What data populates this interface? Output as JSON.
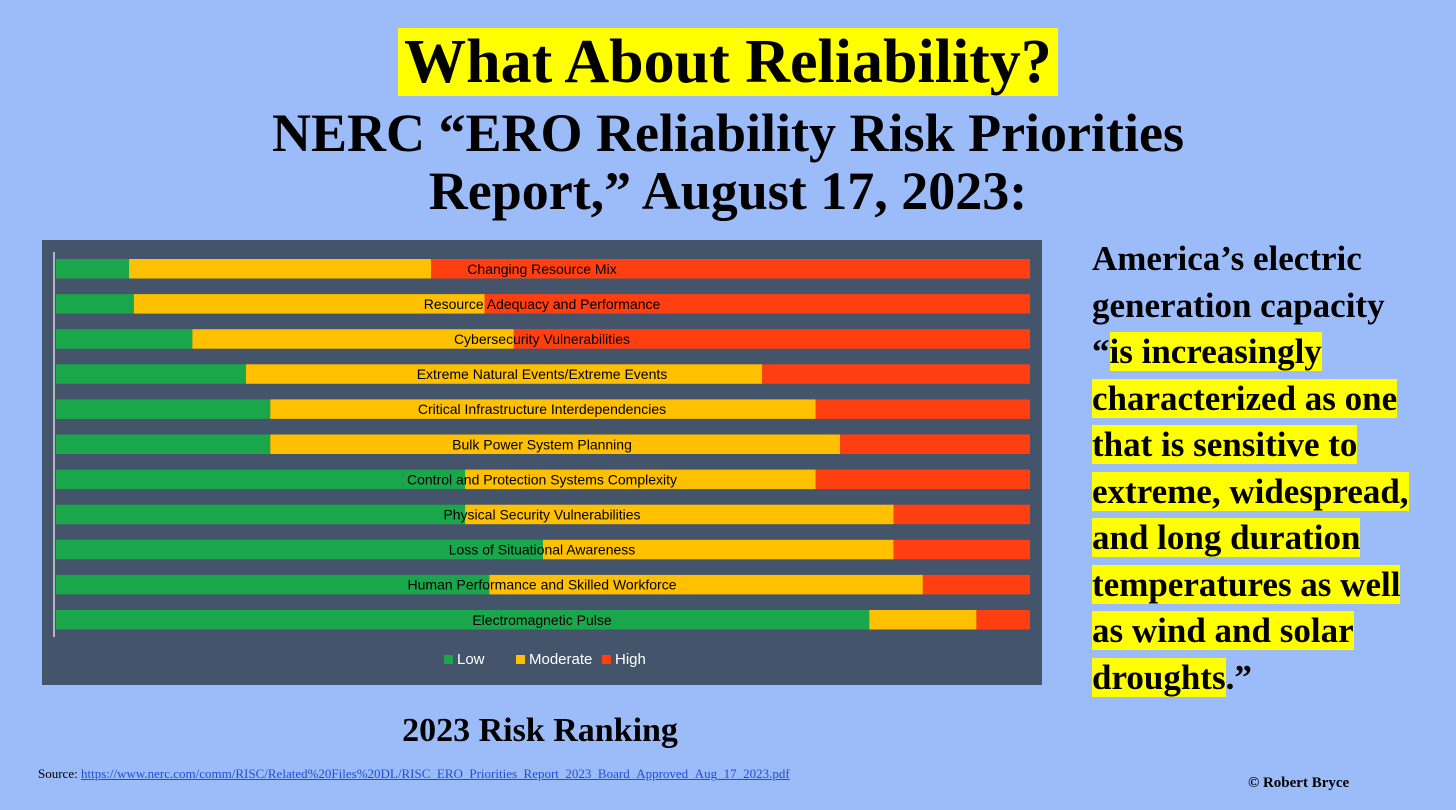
{
  "title": "What About Reliability?",
  "subtitle_line1": "NERC “ERO Reliability Risk Priorities",
  "subtitle_line2": "Report,” August 17, 2023:",
  "quote": {
    "lines": [
      {
        "text": "America’s electric",
        "highlight": false
      },
      {
        "text": "generation capacity",
        "highlight": false
      },
      {
        "prefix": "“",
        "text": "is increasingly ",
        "highlight": true
      },
      {
        "text": "characterized as one ",
        "highlight": true
      },
      {
        "text": "that is sensitive to ",
        "highlight": true
      },
      {
        "text": "extreme, widespread,",
        "highlight": true
      },
      {
        "text": "and long duration ",
        "highlight": true
      },
      {
        "text": "temperatures as well",
        "highlight": true
      },
      {
        "text": "as wind and solar ",
        "highlight": true
      },
      {
        "text": "droughts",
        "highlight": true,
        "suffix": ".”"
      }
    ]
  },
  "caption": "2023 Risk Ranking",
  "source_label": "Source: ",
  "source_link": "https://www.nerc.com/comm/RISC/Related%20Files%20DL/RISC_ERO_Priorities_Report_2023_Board_Approved_Aug_17_2023.pdf",
  "credit": "© Robert Bryce",
  "colors": {
    "low": "#1aa64a",
    "moderate": "#ffc000",
    "high": "#ff3f0f",
    "chart_bg": "#44546a",
    "highlight": "#ffff00"
  },
  "chart_data": {
    "type": "bar",
    "orientation": "horizontal",
    "stacked": "100%",
    "categories": [
      "Changing Resource Mix",
      "Resource Adequacy and Performance",
      "Cybersecurity Vulnerabilities",
      "Extreme Natural Events/Extreme Events",
      "Critical Infrastructure Interdependencies",
      "Bulk Power System Planning",
      "Control and Protection Systems Complexity",
      "Physical Security Vulnerabilities",
      "Loss of Situational Awareness",
      "Human Performance and Skilled Workforce",
      "Electromagnetic Pulse"
    ],
    "series": [
      {
        "name": "Low",
        "values": [
          7.5,
          8,
          14,
          19.5,
          22,
          22,
          42,
          42,
          50,
          44.5,
          83.5
        ]
      },
      {
        "name": "Moderate",
        "values": [
          31,
          36,
          33,
          53,
          56,
          58.5,
          36,
          44,
          36,
          44.5,
          11
        ]
      },
      {
        "name": "High",
        "values": [
          61.5,
          56,
          53,
          27.5,
          22,
          19.5,
          22,
          14,
          14,
          11,
          5.5
        ]
      }
    ],
    "legend": [
      "Low",
      "Moderate",
      "High"
    ],
    "legend_position": "bottom",
    "xlim": [
      0,
      100
    ],
    "grid": false
  }
}
